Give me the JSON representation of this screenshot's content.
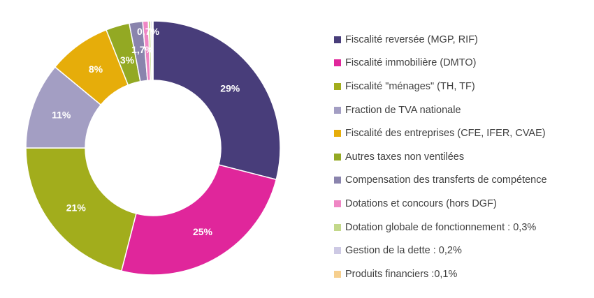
{
  "chart_data": {
    "type": "pie",
    "series": [
      {
        "name": "Fiscalité reversée (MGP, RIF)",
        "value": 29,
        "label": "29%",
        "color": "#483d7a"
      },
      {
        "name": "Fiscalité immobilière (DMTO)",
        "value": 25,
        "label": "25%",
        "color": "#e0269b"
      },
      {
        "name": "Fiscalité \"ménages\" (TH, TF)",
        "value": 21,
        "label": "21%",
        "color": "#a2ad1c"
      },
      {
        "name": "Fraction de TVA nationale",
        "value": 11,
        "label": "11%",
        "color": "#a39ec3"
      },
      {
        "name": "Fiscalité des entreprises (CFE, IFER, CVAE)",
        "value": 8,
        "label": "8%",
        "color": "#e6ad0a"
      },
      {
        "name": "Autres taxes non ventilées",
        "value": 3,
        "label": "3%",
        "color": "#93a923"
      },
      {
        "name": "Compensation des transferts de compétence",
        "value": 1.7,
        "label": "1,7%",
        "color": "#8a84ad"
      },
      {
        "name": "Dotations et concours (hors DGF)",
        "value": 0.7,
        "label": "0,7%",
        "color": "#ef86c4"
      },
      {
        "name": "Dotation globale de fonctionnement : 0,3%",
        "value": 0.3,
        "label": "",
        "color": "#c3d88a"
      },
      {
        "name": "Gestion de la dette : 0,2%",
        "value": 0.2,
        "label": "",
        "color": "#cdc9e4"
      },
      {
        "name": "Produits financiers :0,1%",
        "value": 0.1,
        "label": "",
        "color": "#f6cf8e"
      }
    ],
    "chart_style": "donut",
    "legend_position": "right"
  }
}
